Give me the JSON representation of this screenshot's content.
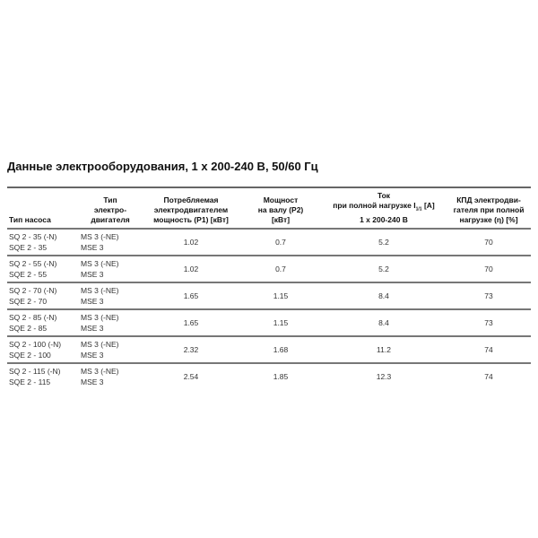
{
  "title": "Данные электрооборудования, 1 x 200-240 В, 50/60 Гц",
  "headers": {
    "pump": "Тип насоса",
    "motor": [
      "Тип",
      "электро-",
      "двигателя"
    ],
    "p1": [
      "Потребляемая",
      "электродвигателем",
      "мощность (P1) [кВт]"
    ],
    "p2": [
      "Мощност",
      "на валу (P2)",
      "[кВт]"
    ],
    "current": [
      "Ток",
      "при полной нагрузке I",
      "1/1",
      " [A]",
      "1 x 200-240 В"
    ],
    "eff": [
      "КПД электродви-",
      "гателя при полной",
      "нагрузке (η) [%]"
    ]
  },
  "rows": [
    {
      "pump": [
        "SQ 2 - 35 (-N)",
        "SQE 2 - 35"
      ],
      "motor": [
        "MS 3 (-NE)",
        "MSE 3"
      ],
      "p1": "1.02",
      "p2": "0.7",
      "current": "5.2",
      "eff": "70"
    },
    {
      "pump": [
        "SQ 2 - 55 (-N)",
        "SQE 2 - 55"
      ],
      "motor": [
        "MS 3 (-NE)",
        "MSE 3"
      ],
      "p1": "1.02",
      "p2": "0.7",
      "current": "5.2",
      "eff": "70"
    },
    {
      "pump": [
        "SQ 2 - 70 (-N)",
        "SQE 2 - 70"
      ],
      "motor": [
        "MS 3 (-NE)",
        "MSE 3"
      ],
      "p1": "1.65",
      "p2": "1.15",
      "current": "8.4",
      "eff": "73"
    },
    {
      "pump": [
        "SQ 2 - 85 (-N)",
        "SQE 2 - 85"
      ],
      "motor": [
        "MS 3 (-NE)",
        "MSE 3"
      ],
      "p1": "1.65",
      "p2": "1.15",
      "current": "8.4",
      "eff": "73"
    },
    {
      "pump": [
        "SQ 2 - 100 (-N)",
        "SQE 2 - 100"
      ],
      "motor": [
        "MS 3 (-NE)",
        "MSE 3"
      ],
      "p1": "2.32",
      "p2": "1.68",
      "current": "11.2",
      "eff": "74"
    },
    {
      "pump": [
        "SQ 2 - 115 (-N)",
        "SQE 2 - 115"
      ],
      "motor": [
        "MS 3 (-NE)",
        "MSE 3"
      ],
      "p1": "2.54",
      "p2": "1.85",
      "current": "12.3",
      "eff": "74"
    }
  ]
}
